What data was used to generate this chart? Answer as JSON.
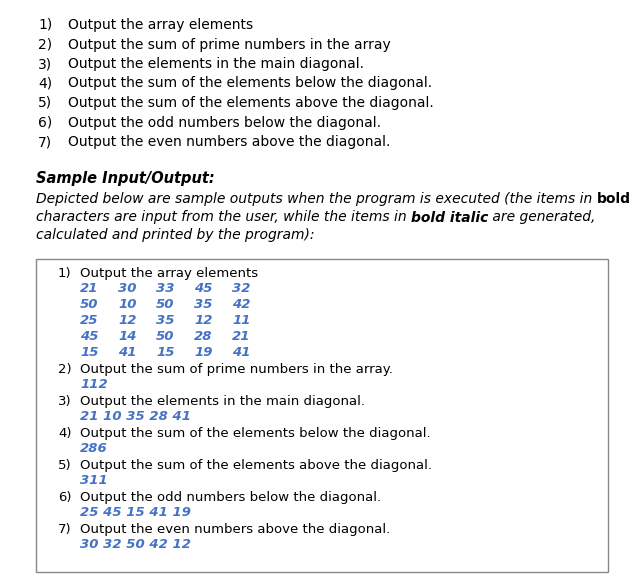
{
  "bg_color": "#ffffff",
  "text_color_black": "#000000",
  "text_color_blue": "#4472c4",
  "numbered_list": [
    "Output the array elements",
    "Output the sum of prime numbers in the array",
    "Output the elements in the main diagonal.",
    "Output the sum of the elements below the diagonal.",
    "Output the sum of the elements above the diagonal.",
    "Output the odd numbers below the diagonal.",
    "Output the even numbers above the diagonal."
  ],
  "sample_header": "Sample Input/Output:",
  "box_items": [
    {
      "number": "1)",
      "label": "Output the array elements",
      "output_lines": [
        [
          "21",
          "30",
          "33",
          "45",
          "32"
        ],
        [
          "50",
          "10",
          "50",
          "35",
          "42"
        ],
        [
          "25",
          "12",
          "35",
          "12",
          "11"
        ],
        [
          "45",
          "14",
          "50",
          "28",
          "21"
        ],
        [
          "15",
          "41",
          "15",
          "19",
          "41"
        ]
      ]
    },
    {
      "number": "2)",
      "label": "Output the sum of prime numbers in the array.",
      "output": "112"
    },
    {
      "number": "3)",
      "label": "Output the elements in the main diagonal.",
      "output": "21 10 35 28 41"
    },
    {
      "number": "4)",
      "label": "Output the sum of the elements below the diagonal.",
      "output": "286"
    },
    {
      "number": "5)",
      "label": "Output the sum of the elements above the diagonal.",
      "output": "311"
    },
    {
      "number": "6)",
      "label": "Output the odd numbers below the diagonal.",
      "output": "25 45 15 41 19"
    },
    {
      "number": "7)",
      "label": "Output the even numbers above the diagonal.",
      "output": "30 32 50 42 12"
    }
  ],
  "fig_width": 6.35,
  "fig_height": 5.86,
  "dpi": 100
}
